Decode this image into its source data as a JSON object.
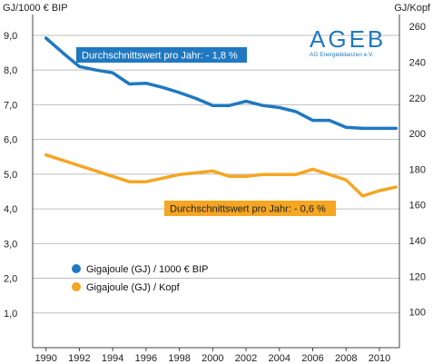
{
  "chart_data": {
    "type": "line",
    "left_axis_title": "GJ/1000 € BIP",
    "right_axis_title": "GJ/Kopf",
    "x_ticks": [
      "1990",
      "1992",
      "1994",
      "1996",
      "1998",
      "2000",
      "2002",
      "2004",
      "2006",
      "2008",
      "2010"
    ],
    "left_ticks": [
      "1,0",
      "2,0",
      "3,0",
      "4,0",
      "5,0",
      "6,0",
      "7,0",
      "8,0",
      "9,0"
    ],
    "right_ticks": [
      "100",
      "120",
      "140",
      "160",
      "180",
      "200",
      "220",
      "240",
      "260"
    ],
    "xlim": [
      1989.2,
      2011.2
    ],
    "ylim_left": [
      0,
      9.6
    ],
    "ylim_right": [
      80,
      266.7
    ],
    "grid": "horizontal",
    "series": [
      {
        "name": "Gigajoule (GJ) / 1000 € BIP",
        "axis": "left",
        "color": "#1f78c1",
        "x": [
          1990,
          1991,
          1992,
          1993,
          1994,
          1995,
          1996,
          1997,
          1998,
          1999,
          2000,
          2001,
          2002,
          2003,
          2004,
          2005,
          2006,
          2007,
          2008,
          2009,
          2010,
          2011
        ],
        "y": [
          8.92,
          8.5,
          8.1,
          8.0,
          7.92,
          7.6,
          7.62,
          7.5,
          7.35,
          7.18,
          6.98,
          6.98,
          7.1,
          6.98,
          6.92,
          6.8,
          6.55,
          6.55,
          6.35,
          6.32,
          6.32,
          6.32
        ]
      },
      {
        "name": "Gigajoule (GJ) / Kopf",
        "axis": "right",
        "color": "#f5a623",
        "x": [
          1990,
          1991,
          1992,
          1993,
          1994,
          1995,
          1996,
          1997,
          1998,
          1999,
          2000,
          2001,
          2002,
          2003,
          2004,
          2005,
          2006,
          2007,
          2008,
          2009,
          2010,
          2011
        ],
        "y": [
          188,
          185,
          182,
          179,
          176,
          173,
          173,
          175,
          177,
          178,
          179,
          176,
          176,
          177,
          177,
          177,
          180,
          177,
          174,
          165,
          168,
          170
        ]
      }
    ],
    "annotations": [
      {
        "text": "Durchschnittswert pro Jahr: - 1,8 %",
        "color": "#1f78c1"
      },
      {
        "text": "Durchschnittswert pro Jahr: - 0,6 %",
        "color": "#f5a623"
      }
    ],
    "legend_position": "bottom-left",
    "logo": {
      "main": "AGEB",
      "sub": "AG Energiebilanzen e.V."
    }
  }
}
